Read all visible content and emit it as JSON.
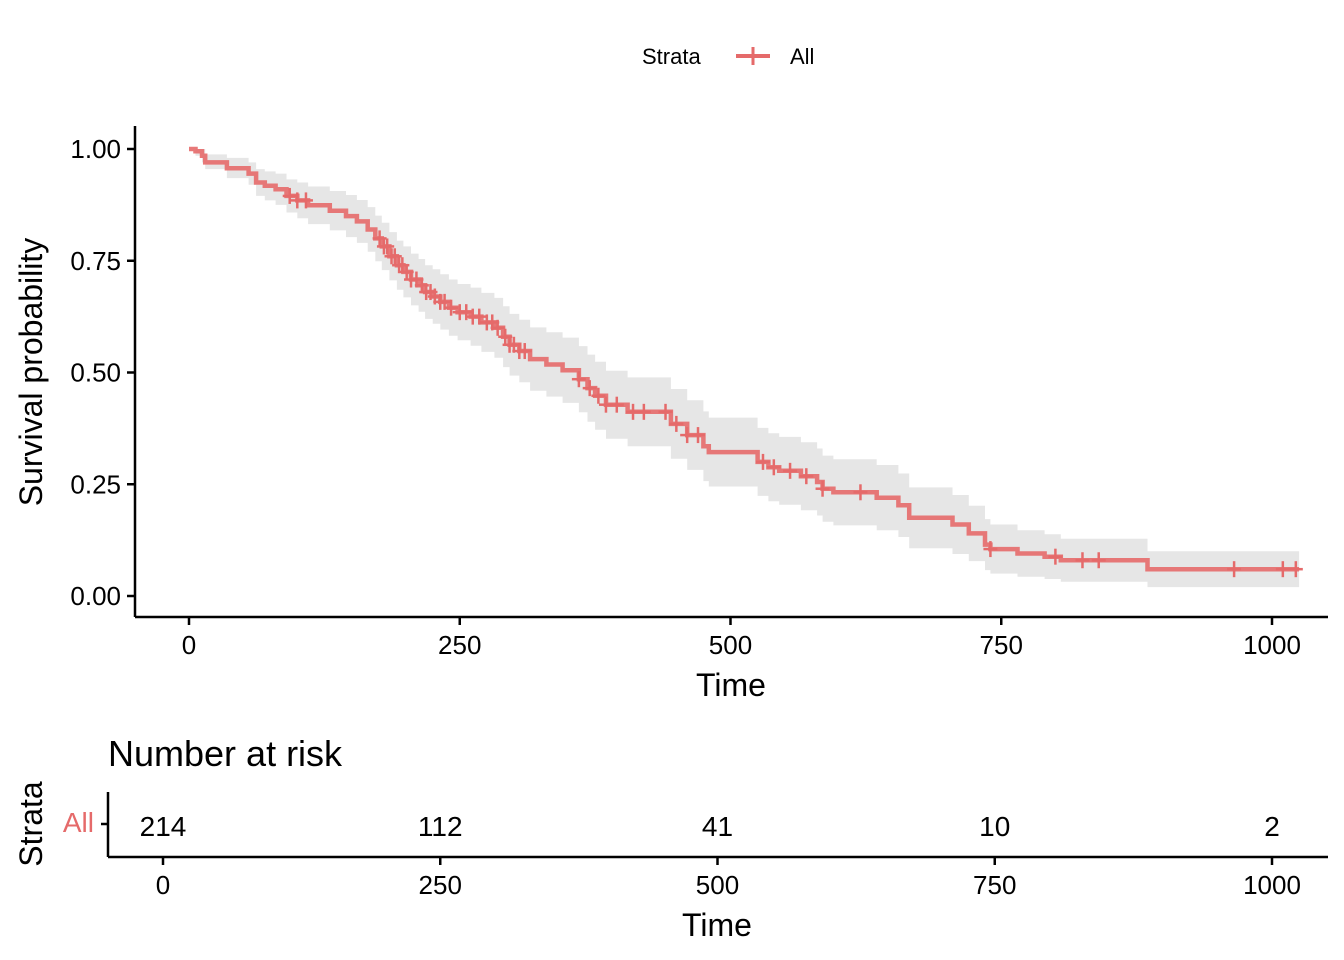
{
  "chart_data": [
    {
      "type": "line",
      "subtype": "kaplan-meier",
      "title": "",
      "xlabel": "Time",
      "ylabel": "Survival probability",
      "xlim": [
        0,
        1050
      ],
      "ylim": [
        0,
        1
      ],
      "x_ticks": [
        0,
        250,
        500,
        750,
        1000
      ],
      "x_tick_labels": [
        "0",
        "250",
        "500",
        "750",
        "1000"
      ],
      "y_ticks": [
        0,
        0.25,
        0.5,
        0.75,
        1
      ],
      "y_tick_labels": [
        "0.00",
        "0.25",
        "0.50",
        "0.75",
        "1.00"
      ],
      "grid": false,
      "legend": {
        "title": "Strata",
        "position": "top",
        "entries": [
          {
            "name": "All",
            "color": "#e56a6a"
          }
        ]
      },
      "series": [
        {
          "name": "All",
          "color": "#e56a6a",
          "confidence_band_color": "#e6e6e6",
          "steps": [
            [
              0,
              1.0
            ],
            [
              6,
              0.995
            ],
            [
              12,
              0.985
            ],
            [
              15,
              0.97
            ],
            [
              35,
              0.957
            ],
            [
              55,
              0.945
            ],
            [
              62,
              0.925
            ],
            [
              70,
              0.918
            ],
            [
              80,
              0.91
            ],
            [
              90,
              0.895
            ],
            [
              100,
              0.885
            ],
            [
              110,
              0.874
            ],
            [
              130,
              0.862
            ],
            [
              145,
              0.85
            ],
            [
              155,
              0.838
            ],
            [
              165,
              0.82
            ],
            [
              172,
              0.8
            ],
            [
              178,
              0.782
            ],
            [
              185,
              0.76
            ],
            [
              192,
              0.74
            ],
            [
              198,
              0.725
            ],
            [
              205,
              0.708
            ],
            [
              212,
              0.695
            ],
            [
              218,
              0.68
            ],
            [
              225,
              0.67
            ],
            [
              232,
              0.658
            ],
            [
              240,
              0.645
            ],
            [
              248,
              0.635
            ],
            [
              260,
              0.625
            ],
            [
              270,
              0.612
            ],
            [
              282,
              0.6
            ],
            [
              290,
              0.58
            ],
            [
              296,
              0.562
            ],
            [
              305,
              0.548
            ],
            [
              315,
              0.53
            ],
            [
              330,
              0.518
            ],
            [
              345,
              0.505
            ],
            [
              360,
              0.485
            ],
            [
              368,
              0.465
            ],
            [
              375,
              0.448
            ],
            [
              385,
              0.428
            ],
            [
              405,
              0.412
            ],
            [
              425,
              0.412
            ],
            [
              445,
              0.385
            ],
            [
              460,
              0.36
            ],
            [
              475,
              0.335
            ],
            [
              480,
              0.322
            ],
            [
              520,
              0.322
            ],
            [
              525,
              0.3
            ],
            [
              535,
              0.288
            ],
            [
              545,
              0.28
            ],
            [
              565,
              0.268
            ],
            [
              580,
              0.255
            ],
            [
              585,
              0.24
            ],
            [
              595,
              0.232
            ],
            [
              620,
              0.232
            ],
            [
              635,
              0.22
            ],
            [
              655,
              0.203
            ],
            [
              665,
              0.175
            ],
            [
              690,
              0.175
            ],
            [
              705,
              0.16
            ],
            [
              720,
              0.14
            ],
            [
              735,
              0.115
            ],
            [
              740,
              0.105
            ],
            [
              765,
              0.095
            ],
            [
              790,
              0.088
            ],
            [
              805,
              0.08
            ],
            [
              835,
              0.08
            ],
            [
              885,
              0.06
            ],
            [
              1025,
              0.06
            ]
          ],
          "lower": [
            [
              0,
              1.0
            ],
            [
              6,
              0.985
            ],
            [
              12,
              0.97
            ],
            [
              15,
              0.955
            ],
            [
              35,
              0.935
            ],
            [
              55,
              0.92
            ],
            [
              62,
              0.895
            ],
            [
              70,
              0.885
            ],
            [
              80,
              0.875
            ],
            [
              90,
              0.858
            ],
            [
              100,
              0.845
            ],
            [
              110,
              0.832
            ],
            [
              130,
              0.818
            ],
            [
              145,
              0.803
            ],
            [
              155,
              0.79
            ],
            [
              165,
              0.77
            ],
            [
              172,
              0.749
            ],
            [
              178,
              0.729
            ],
            [
              185,
              0.706
            ],
            [
              192,
              0.685
            ],
            [
              198,
              0.668
            ],
            [
              205,
              0.65
            ],
            [
              212,
              0.636
            ],
            [
              218,
              0.62
            ],
            [
              225,
              0.609
            ],
            [
              232,
              0.596
            ],
            [
              240,
              0.582
            ],
            [
              248,
              0.572
            ],
            [
              260,
              0.56
            ],
            [
              270,
              0.546
            ],
            [
              282,
              0.533
            ],
            [
              290,
              0.512
            ],
            [
              296,
              0.493
            ],
            [
              305,
              0.478
            ],
            [
              315,
              0.459
            ],
            [
              330,
              0.446
            ],
            [
              345,
              0.432
            ],
            [
              360,
              0.411
            ],
            [
              368,
              0.39
            ],
            [
              375,
              0.372
            ],
            [
              385,
              0.352
            ],
            [
              405,
              0.335
            ],
            [
              425,
              0.335
            ],
            [
              445,
              0.307
            ],
            [
              460,
              0.282
            ],
            [
              475,
              0.257
            ],
            [
              480,
              0.245
            ],
            [
              520,
              0.245
            ],
            [
              525,
              0.224
            ],
            [
              535,
              0.212
            ],
            [
              545,
              0.204
            ],
            [
              565,
              0.192
            ],
            [
              580,
              0.18
            ],
            [
              585,
              0.166
            ],
            [
              595,
              0.158
            ],
            [
              620,
              0.158
            ],
            [
              635,
              0.147
            ],
            [
              655,
              0.132
            ],
            [
              665,
              0.107
            ],
            [
              690,
              0.107
            ],
            [
              705,
              0.094
            ],
            [
              720,
              0.078
            ],
            [
              735,
              0.058
            ],
            [
              740,
              0.05
            ],
            [
              765,
              0.043
            ],
            [
              790,
              0.038
            ],
            [
              805,
              0.032
            ],
            [
              835,
              0.032
            ],
            [
              885,
              0.02
            ],
            [
              1025,
              0.02
            ]
          ],
          "upper": [
            [
              0,
              1.0
            ],
            [
              6,
              1.0
            ],
            [
              12,
              1.0
            ],
            [
              15,
              0.988
            ],
            [
              35,
              0.98
            ],
            [
              55,
              0.97
            ],
            [
              62,
              0.955
            ],
            [
              70,
              0.95
            ],
            [
              80,
              0.945
            ],
            [
              90,
              0.932
            ],
            [
              100,
              0.925
            ],
            [
              110,
              0.916
            ],
            [
              130,
              0.906
            ],
            [
              145,
              0.897
            ],
            [
              155,
              0.886
            ],
            [
              165,
              0.87
            ],
            [
              172,
              0.851
            ],
            [
              178,
              0.835
            ],
            [
              185,
              0.814
            ],
            [
              192,
              0.795
            ],
            [
              198,
              0.782
            ],
            [
              205,
              0.766
            ],
            [
              212,
              0.754
            ],
            [
              218,
              0.74
            ],
            [
              225,
              0.731
            ],
            [
              232,
              0.72
            ],
            [
              240,
              0.708
            ],
            [
              248,
              0.698
            ],
            [
              260,
              0.69
            ],
            [
              270,
              0.678
            ],
            [
              282,
              0.667
            ],
            [
              290,
              0.648
            ],
            [
              296,
              0.631
            ],
            [
              305,
              0.618
            ],
            [
              315,
              0.601
            ],
            [
              330,
              0.59
            ],
            [
              345,
              0.578
            ],
            [
              360,
              0.559
            ],
            [
              368,
              0.54
            ],
            [
              375,
              0.524
            ],
            [
              385,
              0.504
            ],
            [
              405,
              0.489
            ],
            [
              425,
              0.489
            ],
            [
              445,
              0.463
            ],
            [
              460,
              0.438
            ],
            [
              475,
              0.413
            ],
            [
              480,
              0.399
            ],
            [
              520,
              0.399
            ],
            [
              525,
              0.376
            ],
            [
              535,
              0.364
            ],
            [
              545,
              0.356
            ],
            [
              565,
              0.344
            ],
            [
              580,
              0.33
            ],
            [
              585,
              0.314
            ],
            [
              595,
              0.306
            ],
            [
              620,
              0.306
            ],
            [
              635,
              0.293
            ],
            [
              655,
              0.274
            ],
            [
              665,
              0.243
            ],
            [
              690,
              0.243
            ],
            [
              705,
              0.226
            ],
            [
              720,
              0.202
            ],
            [
              735,
              0.172
            ],
            [
              740,
              0.16
            ],
            [
              765,
              0.147
            ],
            [
              790,
              0.138
            ],
            [
              805,
              0.128
            ],
            [
              835,
              0.128
            ],
            [
              885,
              0.1
            ],
            [
              1025,
              0.1
            ]
          ],
          "censor_times": [
            93,
            100,
            108,
            176,
            180,
            183,
            187,
            190,
            194,
            197,
            201,
            205,
            210,
            215,
            219,
            223,
            227,
            232,
            236,
            242,
            250,
            256,
            262,
            268,
            275,
            280,
            285,
            292,
            296,
            300,
            305,
            310,
            360,
            370,
            378,
            385,
            395,
            410,
            420,
            440,
            450,
            460,
            470,
            530,
            540,
            555,
            570,
            585,
            620,
            740,
            800,
            825,
            840,
            965,
            1010,
            1022
          ]
        }
      ]
    },
    {
      "type": "table",
      "title": "Number at risk",
      "xlabel": "Time",
      "ylabel": "Strata",
      "xlim": [
        0,
        1050
      ],
      "x_ticks": [
        0,
        250,
        500,
        750,
        1000
      ],
      "x_tick_labels": [
        "0",
        "250",
        "500",
        "750",
        "1000"
      ],
      "rows": [
        {
          "strata": "All",
          "color": "#e56a6a",
          "times": [
            0,
            250,
            500,
            750,
            1000
          ],
          "values": [
            "214",
            "112",
            "41",
            "10",
            "2"
          ]
        }
      ]
    }
  ]
}
